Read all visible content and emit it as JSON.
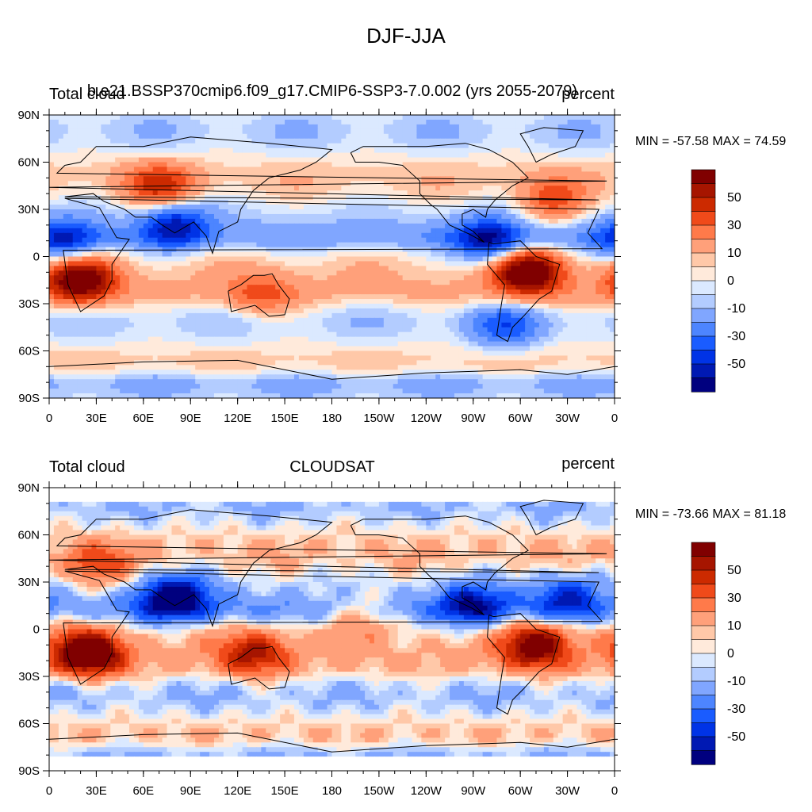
{
  "title": "DJF-JJA",
  "colors": [
    "#00007f",
    "#0019b3",
    "#0033e6",
    "#1a5cff",
    "#4d85ff",
    "#80a6ff",
    "#b3ccff",
    "#dbe9ff",
    "#ffeadb",
    "#ffc8a8",
    "#ffa07a",
    "#ff7a4a",
    "#f04a1a",
    "#cc2a00",
    "#a61500",
    "#800000"
  ],
  "colorbar_labels": [
    "50",
    "30",
    "10",
    "0",
    "-10",
    "-30",
    "-50"
  ],
  "lat_labels": [
    "90N",
    "60N",
    "30N",
    "0",
    "30S",
    "60S",
    "90S"
  ],
  "lon_labels": [
    "0",
    "30E",
    "60E",
    "90E",
    "120E",
    "150E",
    "180",
    "150W",
    "120W",
    "90W",
    "60W",
    "30W",
    "0"
  ],
  "panels": [
    {
      "left_title": "Total cloud",
      "center_title": "b.e21.BSSP370cmip6.f09_g17.CMIP6-SSP3-7.0.002 (yrs 2055-2079)",
      "right_title": "percent",
      "stats": "MIN = -57.58 MAX =  74.59"
    },
    {
      "left_title": "Total cloud",
      "center_title": "CLOUDSAT",
      "right_title": "percent",
      "stats": "MIN = -73.66 MAX =  81.18"
    }
  ],
  "chart_data": [
    {
      "type": "heatmap",
      "title": "DJF-JJA",
      "left_title": "Total cloud",
      "center_title": "b.e21.BSSP370cmip6.f09_g17.CMIP6-SSP3-7.0.002 (yrs 2055-2079)",
      "units": "percent",
      "min": -57.58,
      "max": 74.59,
      "xlim": [
        0,
        360
      ],
      "ylim": [
        -90,
        90
      ],
      "colorbar_levels": [
        -70,
        -60,
        -50,
        -40,
        -30,
        -20,
        -10,
        -5,
        0,
        5,
        10,
        20,
        30,
        40,
        50,
        60,
        70
      ],
      "anomalies": [
        {
          "lon": 20,
          "lat": -15,
          "value": 70
        },
        {
          "lon": 305,
          "lat": -10,
          "value": 74
        },
        {
          "lon": 70,
          "lat": 45,
          "value": 40
        },
        {
          "lon": 320,
          "lat": 35,
          "value": 35
        },
        {
          "lon": 80,
          "lat": 20,
          "value": -45
        },
        {
          "lon": 280,
          "lat": 10,
          "value": -50
        },
        {
          "lon": 10,
          "lat": 10,
          "value": -40
        },
        {
          "lon": 135,
          "lat": -25,
          "value": 25
        },
        {
          "lon": 290,
          "lat": -45,
          "value": -30
        }
      ]
    },
    {
      "type": "heatmap",
      "title": "DJF-JJA",
      "left_title": "Total cloud",
      "center_title": "CLOUDSAT",
      "units": "percent",
      "min": -73.66,
      "max": 81.18,
      "xlim": [
        0,
        360
      ],
      "ylim": [
        -90,
        90
      ],
      "colorbar_levels": [
        -70,
        -60,
        -50,
        -40,
        -30,
        -20,
        -10,
        -5,
        0,
        5,
        10,
        20,
        30,
        40,
        50,
        60,
        70
      ],
      "anomalies": [
        {
          "lon": 25,
          "lat": -15,
          "value": 80
        },
        {
          "lon": 310,
          "lat": -10,
          "value": 65
        },
        {
          "lon": 130,
          "lat": -15,
          "value": 45
        },
        {
          "lon": 80,
          "lat": 20,
          "value": -70
        },
        {
          "lon": 270,
          "lat": 15,
          "value": -50
        },
        {
          "lon": 30,
          "lat": 40,
          "value": 35
        },
        {
          "lon": 200,
          "lat": 10,
          "value": 20
        },
        {
          "lon": 330,
          "lat": 20,
          "value": -40
        }
      ]
    }
  ]
}
